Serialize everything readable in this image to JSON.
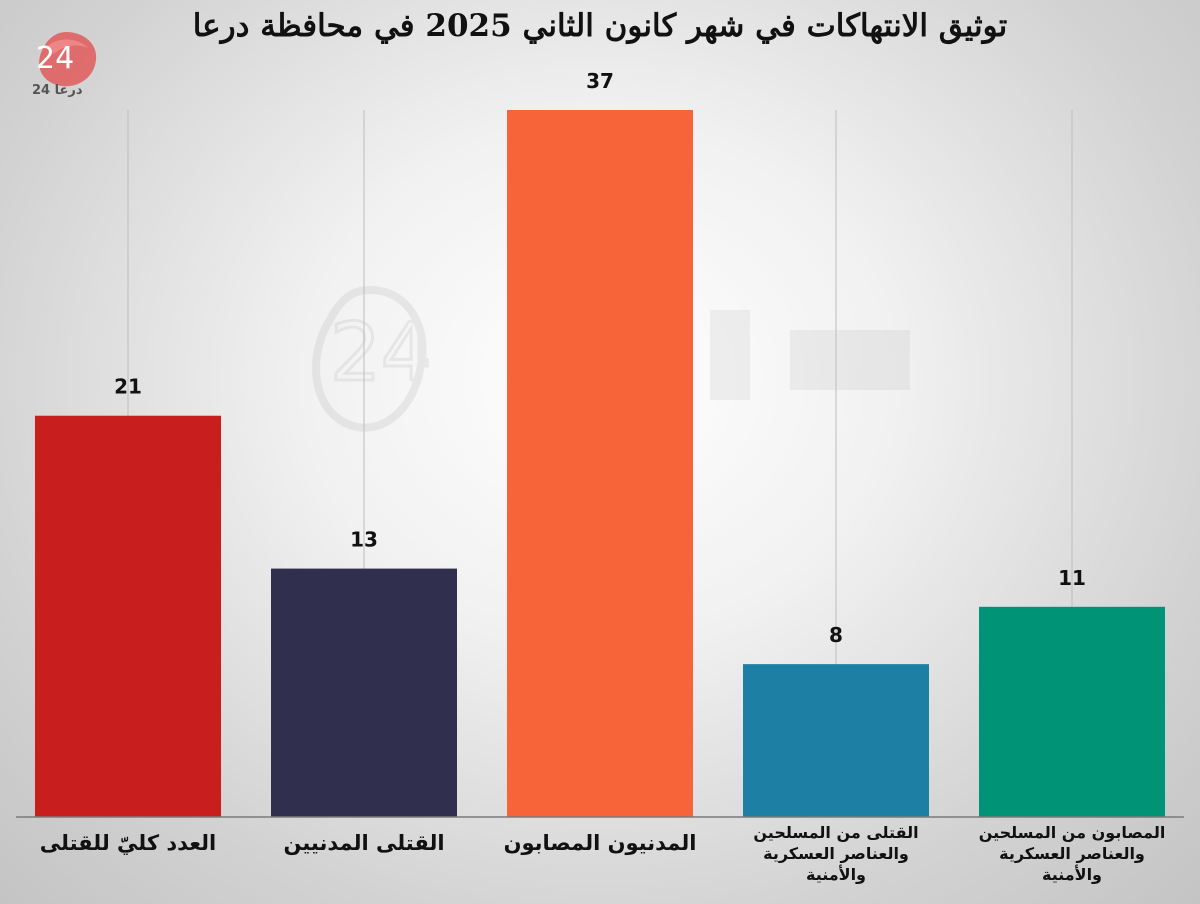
{
  "chart_data": {
    "type": "bar",
    "title": "توثيق الانتهاكات في شهر كانون الثاني 2025 في محافظة درعا",
    "categories": [
      "العدد كليّ للقتلى",
      "القتلى المدنيين",
      "المدنيون المصابون",
      "القتلى من المسلحين والعناصر العسكرية والأمنية",
      "المصابون من المسلحين والعناصر العسكرية والأمنية"
    ],
    "values": [
      21,
      13,
      37,
      8,
      11
    ],
    "colors": [
      "#c81e1e",
      "#30304e",
      "#f7643a",
      "#1e7fa4",
      "#009376"
    ],
    "ylim": [
      0,
      40
    ],
    "grid": "vertical-lines",
    "legend": "none",
    "data_labels": true
  },
  "logo": {
    "number": "24",
    "text": "درعا 24"
  }
}
